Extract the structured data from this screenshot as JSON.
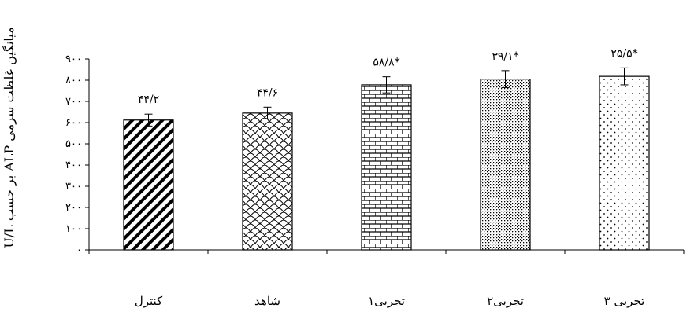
{
  "chart_data": {
    "type": "bar",
    "title": "",
    "xlabel": "",
    "ylabel": "میانگین غلظت سرمی ALP بر حسب U/L",
    "ylim": [
      0,
      900
    ],
    "yticks": [
      0,
      100,
      200,
      300,
      400,
      500,
      600,
      700,
      800,
      900
    ],
    "ytick_labels": [
      "۰",
      "۱۰۰",
      "۲۰۰",
      "۳۰۰",
      "۴۰۰",
      "۵۰۰",
      "۶۰۰",
      "۷۰۰",
      "۸۰۰",
      "۹۰۰"
    ],
    "categories": [
      "کنترل",
      "شاهد",
      "تجربی۱",
      "تجربی۲",
      "تجربی ۳"
    ],
    "values": [
      612,
      645,
      778,
      805,
      818
    ],
    "errors": [
      28,
      28,
      38,
      40,
      40
    ],
    "data_labels": [
      "۴۴/۲",
      "۴۴/۶",
      "۵۸/۸*",
      "۳۹/۱*",
      "۲۵/۵*"
    ],
    "patterns": [
      "diagonal-stripes",
      "scales",
      "bricks",
      "dense-dots",
      "sparse-dots"
    ],
    "grid": false,
    "legend": "none",
    "colors": {
      "bar_stroke": "#000000",
      "fill": "#ffffff"
    }
  }
}
